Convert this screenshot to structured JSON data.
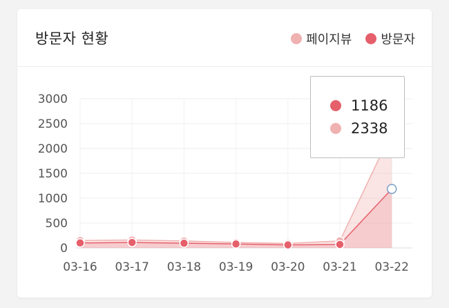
{
  "card": {
    "title": "방문자 현황"
  },
  "legend": [
    {
      "label": "페이지뷰",
      "color": "#f0b1b1"
    },
    {
      "label": "방문자",
      "color": "#e5606b"
    }
  ],
  "tooltip": {
    "visitors": "1186",
    "pageviews": "2338"
  },
  "chart_data": {
    "type": "line",
    "categories": [
      "03-16",
      "03-17",
      "03-18",
      "03-19",
      "03-20",
      "03-21",
      "03-22"
    ],
    "series": [
      {
        "name": "페이지뷰",
        "color": "#f0b1b1",
        "values": [
          150,
          160,
          140,
          110,
          90,
          140,
          2338
        ]
      },
      {
        "name": "방문자",
        "color": "#e5606b",
        "values": [
          100,
          110,
          95,
          80,
          60,
          70,
          1186
        ]
      }
    ],
    "ylim": [
      0,
      3000
    ],
    "yticks": [
      0,
      500,
      1000,
      1500,
      2000,
      2500,
      3000
    ],
    "grid": true,
    "legend_position": "top-right",
    "highlighted_index": 6
  }
}
